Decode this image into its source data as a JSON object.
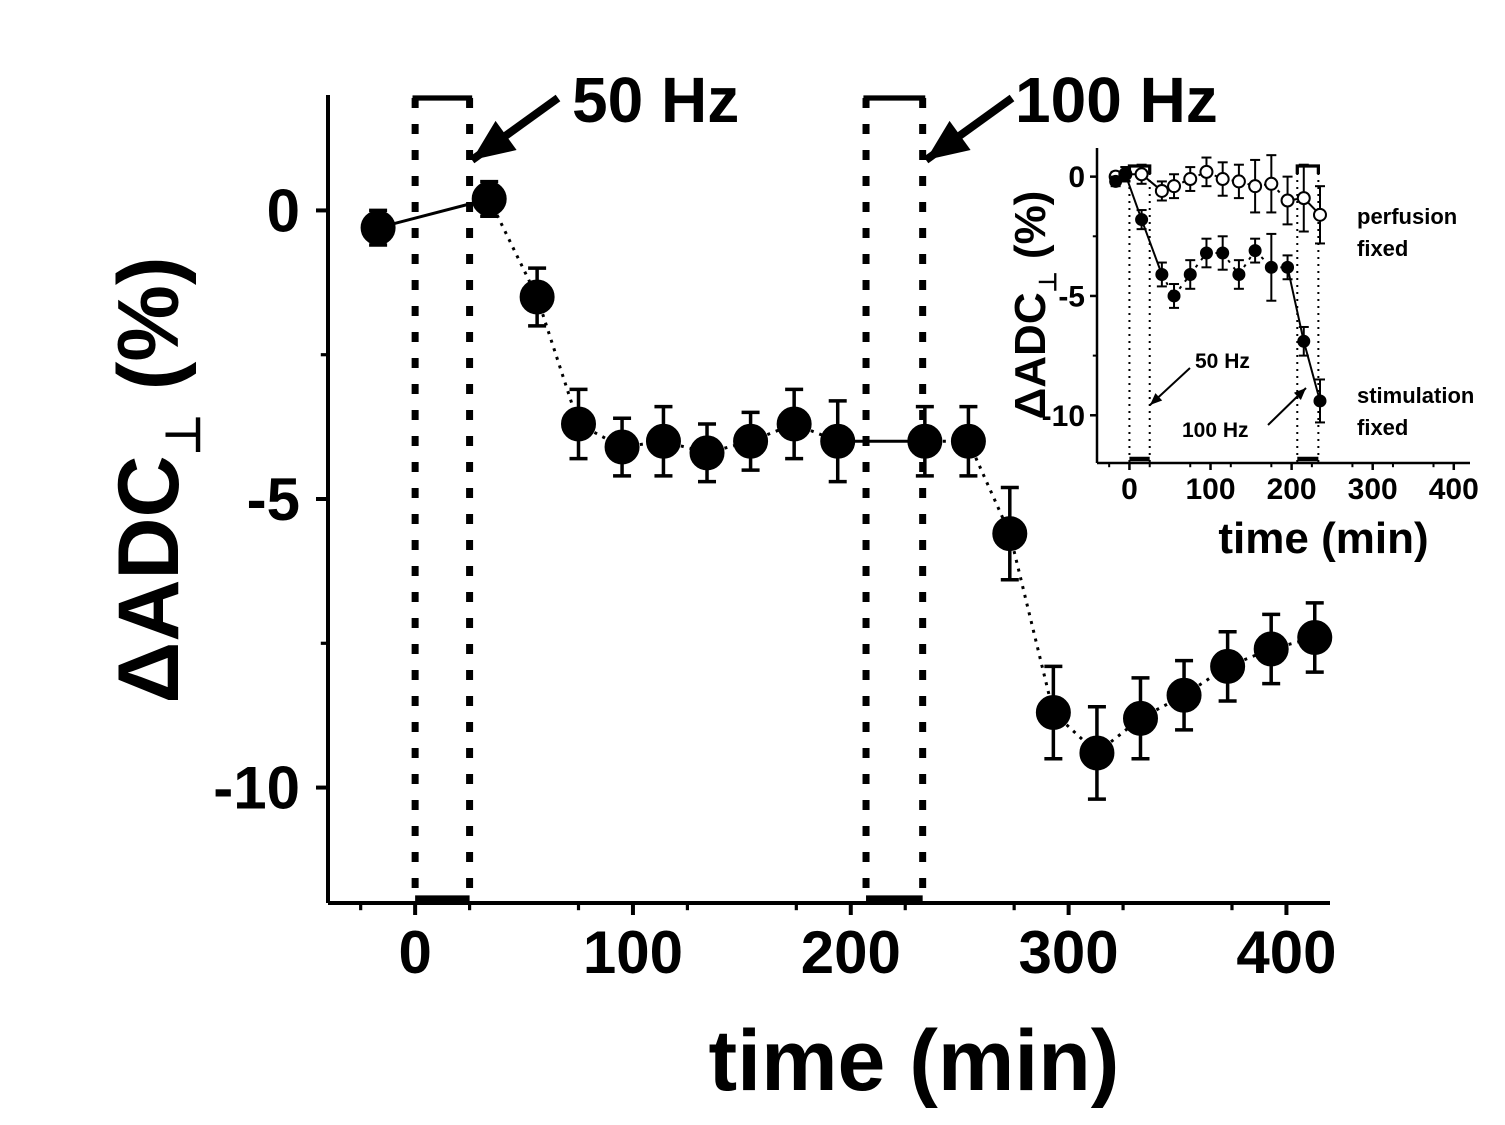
{
  "chart_data": [
    {
      "type": "scatter",
      "xlabel": "time (min)",
      "ylabel_main": "ΔADC",
      "ylabel_sub": "⊥",
      "ylabel_unit": "(%)",
      "xlim": [
        -40,
        420
      ],
      "ylim": [
        -12.0,
        2.0
      ],
      "xticks": [
        0,
        100,
        200,
        300,
        400
      ],
      "yticks": [
        0,
        -5,
        -10
      ],
      "xtick_labels": [
        "0",
        "100",
        "200",
        "300",
        "400"
      ],
      "ytick_labels": [
        "0",
        "-5",
        "-10"
      ],
      "annotations": [
        {
          "label": "50 Hz",
          "window": [
            0,
            25
          ]
        },
        {
          "label": "100 Hz",
          "window": [
            207,
            233
          ]
        }
      ],
      "series": [
        {
          "marker": "filled-circle",
          "x": [
            -17,
            34,
            56,
            75,
            95,
            114,
            134,
            154,
            174,
            194,
            234,
            254,
            273,
            293,
            313,
            333,
            353,
            373,
            393,
            413
          ],
          "y": [
            -0.3,
            0.2,
            -1.5,
            -3.7,
            -4.1,
            -4.0,
            -4.2,
            -4.0,
            -3.7,
            -4.0,
            -4.0,
            -4.0,
            -5.6,
            -8.7,
            -9.4,
            -8.8,
            -8.4,
            -7.9,
            -7.6,
            -7.4
          ],
          "err": [
            0.3,
            0.3,
            0.5,
            0.6,
            0.5,
            0.6,
            0.5,
            0.5,
            0.6,
            0.7,
            0.6,
            0.6,
            0.8,
            0.8,
            0.8,
            0.7,
            0.6,
            0.6,
            0.6,
            0.6
          ]
        }
      ]
    },
    {
      "type": "scatter",
      "xlabel": "time (min)",
      "ylabel_main": "ΔADC",
      "ylabel_sub": "⊥",
      "ylabel_unit": "(%)",
      "xlim": [
        -40,
        420
      ],
      "ylim": [
        -12.0,
        1.2
      ],
      "xticks": [
        0,
        100,
        200,
        300,
        400
      ],
      "yticks": [
        0,
        -5,
        -10
      ],
      "xtick_labels": [
        "0",
        "100",
        "200",
        "300",
        "400"
      ],
      "ytick_labels": [
        "0",
        "-5",
        "-10"
      ],
      "annotations": [
        {
          "label": "50 Hz"
        },
        {
          "label": "100 Hz"
        }
      ],
      "legend": [
        {
          "line1": "perfusion",
          "line2": "fixed"
        },
        {
          "line1": "stimulation",
          "line2": "fixed"
        }
      ],
      "series": [
        {
          "marker": "open-circle",
          "x": [
            -17,
            -5,
            15,
            40,
            55,
            75,
            95,
            115,
            135,
            155,
            175,
            195,
            215,
            235
          ],
          "y": [
            0,
            0.1,
            0.1,
            -0.6,
            -0.4,
            -0.1,
            0.2,
            -0.1,
            -0.2,
            -0.4,
            -0.3,
            -1.0,
            -0.9,
            -1.6
          ],
          "err": [
            0.2,
            0.3,
            0.4,
            0.4,
            0.5,
            0.5,
            0.6,
            0.7,
            0.7,
            1.1,
            1.2,
            1.0,
            1.4,
            1.2
          ]
        },
        {
          "marker": "filled-circle",
          "x": [
            -17,
            -5,
            15,
            40,
            55,
            75,
            95,
            115,
            135,
            155,
            175,
            195,
            215,
            235
          ],
          "y": [
            -0.2,
            0.1,
            -1.8,
            -4.1,
            -5.0,
            -4.1,
            -3.2,
            -3.2,
            -4.1,
            -3.1,
            -3.8,
            -3.8,
            -6.9,
            -9.4
          ],
          "err": [
            0.2,
            0.3,
            0.4,
            0.5,
            0.5,
            0.6,
            0.6,
            0.7,
            0.6,
            0.5,
            1.4,
            0.5,
            0.6,
            0.9
          ]
        }
      ]
    }
  ]
}
